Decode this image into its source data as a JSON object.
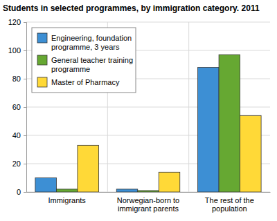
{
  "chart_data": {
    "type": "bar",
    "title": "Students in selected programmes, by immigration category. 2011",
    "categories": [
      "Immigrants",
      "Norwegian-born to immigrant parents",
      "The rest of the population"
    ],
    "series": [
      {
        "name": "Engineering, foundation programme, 3 years",
        "color": "#3d8fd4",
        "values": [
          10,
          2,
          88
        ]
      },
      {
        "name": "General teacher training programme",
        "color": "#66a832",
        "values": [
          2,
          1,
          97
        ]
      },
      {
        "name": "Master of Pharmacy",
        "color": "#ffd937",
        "values": [
          33,
          14,
          54
        ]
      }
    ],
    "ylim": [
      0,
      120
    ],
    "yticks": [
      0,
      20,
      40,
      60,
      80,
      100,
      120
    ],
    "grid": true,
    "legend": "top-left"
  }
}
